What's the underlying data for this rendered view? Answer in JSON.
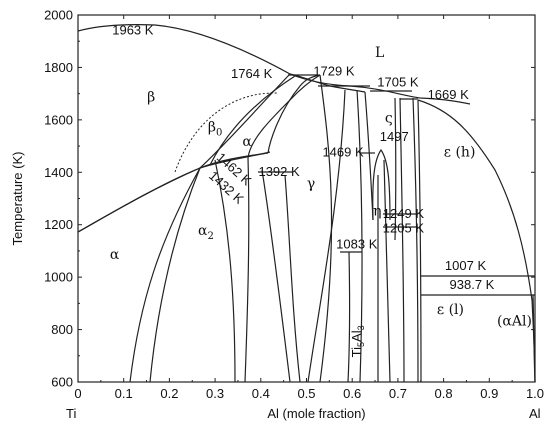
{
  "chart_data": {
    "type": "phase-diagram",
    "xlabel": "Al (mole fraction)",
    "ylabel": "Temperature (K)",
    "xlim": [
      0,
      1.0
    ],
    "ylim": [
      600,
      2000
    ],
    "x_ticks": [
      "0",
      "0.1",
      "0.2",
      "0.3",
      "0.4",
      "0.5",
      "0.6",
      "0.7",
      "0.8",
      "0.9",
      "1.0"
    ],
    "y_ticks": [
      "600",
      "800",
      "1000",
      "1200",
      "1400",
      "1600",
      "1800",
      "2000"
    ],
    "x_end_labels": {
      "left": "Ti",
      "right": "Al"
    },
    "temperature_labels": [
      {
        "text": "1963 K",
        "x": 0.12,
        "y": 1925
      },
      {
        "text": "1764 K",
        "x": 0.38,
        "y": 1760
      },
      {
        "text": "1729 K",
        "x": 0.56,
        "y": 1770
      },
      {
        "text": "1705 K",
        "x": 0.7,
        "y": 1727
      },
      {
        "text": "1669 K",
        "x": 0.81,
        "y": 1680
      },
      {
        "text": "1469 K",
        "x": 0.58,
        "y": 1460
      },
      {
        "text": "1497",
        "x": 0.692,
        "y": 1520
      },
      {
        "text": "1392 K",
        "x": 0.44,
        "y": 1385
      },
      {
        "text": "1249 K",
        "x": 0.712,
        "y": 1225
      },
      {
        "text": "1205 K",
        "x": 0.712,
        "y": 1170
      },
      {
        "text": "1083 K",
        "x": 0.61,
        "y": 1110
      },
      {
        "text": "1007 K",
        "x": 0.848,
        "y": 1027
      },
      {
        "text": "938.7 K",
        "x": 0.862,
        "y": 955
      }
    ],
    "rotated_labels": [
      {
        "text": "1462 K",
        "x": 0.335,
        "y": 1400,
        "angle": 42
      },
      {
        "text": "1432 K",
        "x": 0.318,
        "y": 1330,
        "angle": 42
      }
    ],
    "phase_labels": [
      {
        "text": "L",
        "x": 0.66,
        "y": 1840
      },
      {
        "text": "β",
        "x": 0.16,
        "y": 1670
      },
      {
        "text": "β0",
        "x": 0.3,
        "y": 1555
      },
      {
        "text": "α",
        "x": 0.37,
        "y": 1500
      },
      {
        "text": "γ",
        "x": 0.51,
        "y": 1340
      },
      {
        "text": "ς",
        "x": 0.68,
        "y": 1590
      },
      {
        "text": "ε (h)",
        "x": 0.835,
        "y": 1460
      },
      {
        "text": "α",
        "x": 0.08,
        "y": 1070
      },
      {
        "text": "α2",
        "x": 0.28,
        "y": 1160
      },
      {
        "text": "η",
        "x": 0.655,
        "y": 1235
      },
      {
        "text": "ε (l)",
        "x": 0.815,
        "y": 860
      },
      {
        "text": "(αAl)",
        "x": 0.955,
        "y": 815
      }
    ],
    "vertical_labels": [
      {
        "text": "Ti5Al3",
        "x": 0.626,
        "y": 755
      }
    ]
  }
}
